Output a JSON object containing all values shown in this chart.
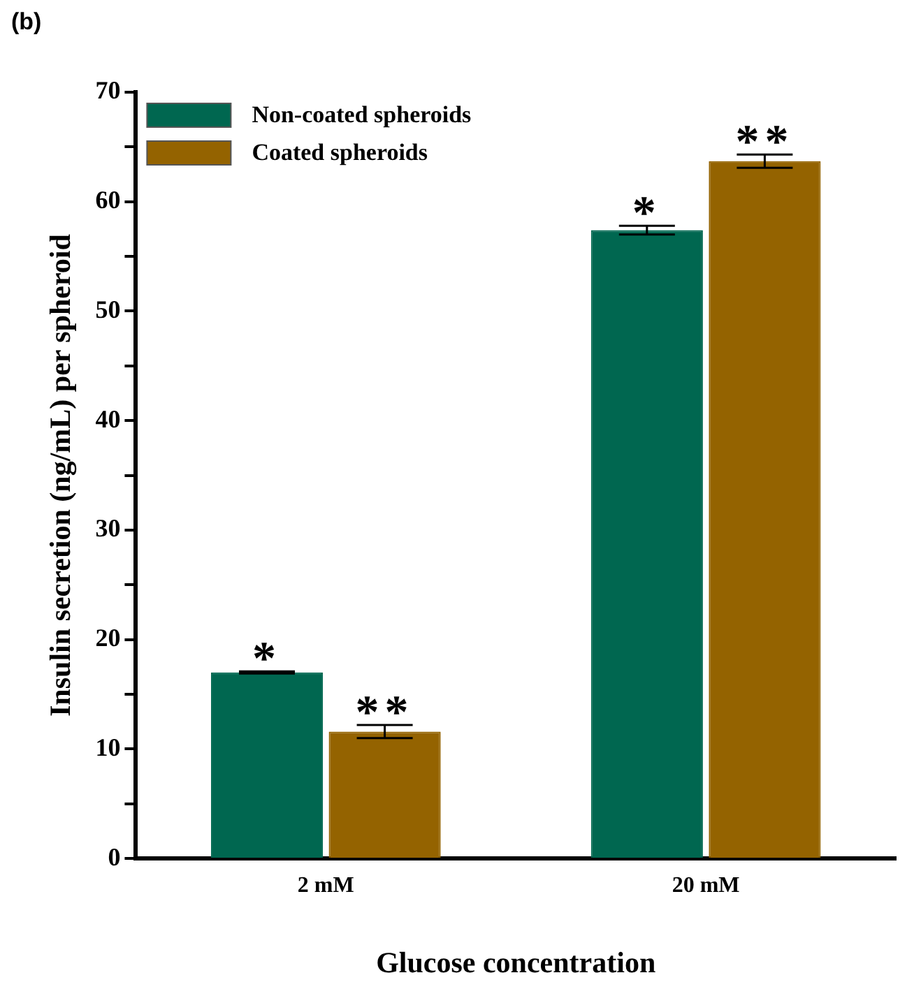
{
  "chart_data": {
    "type": "bar",
    "title": "(b)",
    "xlabel": "Glucose concentration",
    "ylabel": "Insulin secretion (ng/mL) per spheroid",
    "categories": [
      "2 mM",
      "20 mM"
    ],
    "series": [
      {
        "name": "Non-coated spheroids",
        "color": "#006750",
        "values": [
          17.0,
          57.4
        ],
        "errors": [
          0.1,
          0.4
        ]
      },
      {
        "name": "Coated spheroids",
        "color": "#946300",
        "values": [
          11.6,
          63.7
        ],
        "errors": [
          0.6,
          0.6
        ]
      }
    ],
    "ylim": [
      0,
      70
    ],
    "yticks": [
      0,
      {
        "value": 5,
        "label": null
      },
      10,
      {
        "value": 15,
        "label": null
      },
      20,
      {
        "value": 25,
        "label": null
      },
      30,
      {
        "value": 35,
        "label": null
      },
      40,
      {
        "value": 45,
        "label": null
      },
      50,
      {
        "value": 55,
        "label": null
      },
      60,
      {
        "value": 65,
        "label": null
      },
      70
    ],
    "annotations": [
      {
        "text": "*",
        "x": "2 mM",
        "y": 17.0
      },
      {
        "text": "**",
        "x": "2 mM",
        "y": 11.6
      },
      {
        "text": "*",
        "x": "20 mM",
        "y": 57.4
      },
      {
        "text": "**",
        "x": "20 mM",
        "y": 63.7
      }
    ],
    "grid": false,
    "legend": "top left"
  }
}
